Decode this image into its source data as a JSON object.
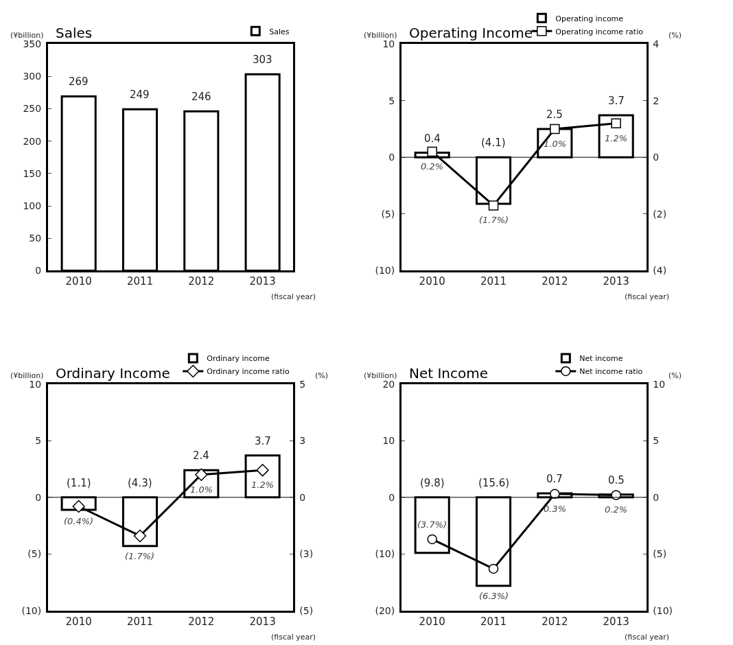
{
  "chart_data": [
    {
      "type": "bar",
      "title": "Sales",
      "ylabel": "(¥billion)",
      "xlabel": "(fiscal year)",
      "categories": [
        "2010",
        "2011",
        "2012",
        "2013"
      ],
      "series": [
        {
          "name": "Sales",
          "color": "#ffffff",
          "values": [
            269,
            249,
            246,
            303
          ]
        }
      ],
      "data_labels": true,
      "ylim": [
        0,
        350
      ],
      "yticks": [
        0,
        50,
        100,
        150,
        200,
        250,
        300,
        350
      ],
      "legend": "top right"
    },
    {
      "type": "bar",
      "title": "Operating Income",
      "ylabel": "(¥billion)",
      "y2label": "(%)",
      "xlabel": "(fiscal year)",
      "categories": [
        "2010",
        "2011",
        "2012",
        "2013"
      ],
      "series": [
        {
          "name": "Operating income",
          "color": "#ffffff",
          "values": [
            0.4,
            -4.1,
            2.5,
            3.7
          ],
          "value_labels": [
            "0.4",
            "(4.1)",
            "2.5",
            "3.7"
          ]
        },
        {
          "name": "Operating income ratio",
          "type": "line",
          "axis": "y2",
          "color": "#000000",
          "marker": "square",
          "values": [
            0.2,
            -1.7,
            1.0,
            1.2
          ],
          "value_labels": [
            "0.2%",
            "(1.7%)",
            "1.0%",
            "1.2%"
          ]
        }
      ],
      "ylim": [
        -10,
        10
      ],
      "yticks": [
        {
          "value": -10,
          "label": "(10)"
        },
        {
          "value": -5,
          "label": "(5)"
        },
        0,
        5,
        10
      ],
      "y2lim": [
        -4,
        4
      ],
      "y2ticks": [
        {
          "value": -4,
          "label": "(4)"
        },
        {
          "value": -2,
          "label": "(2)"
        },
        0,
        2,
        4
      ],
      "ref_lines": [
        {
          "axis": "y",
          "value": 0,
          "color": "#000000"
        }
      ],
      "legend": "top right"
    },
    {
      "type": "bar",
      "title": "Ordinary Income",
      "ylabel": "(¥billion)",
      "y2label": "(%)",
      "xlabel": "(fiscal year)",
      "categories": [
        "2010",
        "2011",
        "2012",
        "2013"
      ],
      "series": [
        {
          "name": "Ordinary income",
          "color": "#ffffff",
          "values": [
            -1.1,
            -4.3,
            2.4,
            3.7
          ],
          "value_labels": [
            "(1.1)",
            "(4.3)",
            "2.4",
            "3.7"
          ]
        },
        {
          "name": "Ordinary income ratio",
          "type": "line",
          "axis": "y2",
          "color": "#000000",
          "marker": "diamond",
          "values": [
            -0.4,
            -1.7,
            1.0,
            1.2
          ],
          "value_labels": [
            "(0.4%)",
            "(1.7%)",
            "1.0%",
            "1.2%"
          ]
        }
      ],
      "ylim": [
        -10,
        10
      ],
      "yticks": [
        {
          "value": -10,
          "label": "(10)"
        },
        {
          "value": -5,
          "label": "(5)"
        },
        0,
        5,
        10
      ],
      "y2lim": [
        -5,
        5
      ],
      "y2ticks": [
        {
          "value": -5,
          "label": "(5)"
        },
        {
          "value": -2.5,
          "label": "(3)"
        },
        0,
        {
          "value": 2.5,
          "label": "3"
        },
        5
      ],
      "ref_lines": [
        {
          "axis": "y",
          "value": 0,
          "color": "#000000"
        }
      ],
      "legend": "top right"
    },
    {
      "type": "bar",
      "title": "Net Income",
      "ylabel": "(¥billion)",
      "y2label": "(%)",
      "xlabel": "(fiscal year)",
      "categories": [
        "2010",
        "2011",
        "2012",
        "2013"
      ],
      "series": [
        {
          "name": "Net income",
          "color": "#ffffff",
          "values": [
            -9.8,
            -15.6,
            0.7,
            0.5
          ],
          "value_labels": [
            "(9.8)",
            "(15.6)",
            "0.7",
            "0.5"
          ]
        },
        {
          "name": "Net income ratio",
          "type": "line",
          "axis": "y2",
          "color": "#000000",
          "marker": "circle",
          "values": [
            -3.7,
            -6.3,
            0.3,
            0.2
          ],
          "value_labels": [
            "(3.7%)",
            "(6.3%)",
            "0.3%",
            "0.2%"
          ]
        }
      ],
      "ylim": [
        -20,
        20
      ],
      "yticks": [
        {
          "value": -20,
          "label": "(20)"
        },
        {
          "value": -10,
          "label": "(10)"
        },
        0,
        10,
        20
      ],
      "y2lim": [
        -10,
        10
      ],
      "y2ticks": [
        {
          "value": -10,
          "label": "(10)"
        },
        {
          "value": -5,
          "label": "(5)"
        },
        0,
        5,
        10
      ],
      "ref_lines": [
        {
          "axis": "y",
          "value": 0,
          "color": "#000000"
        }
      ],
      "legend": "top right"
    }
  ]
}
